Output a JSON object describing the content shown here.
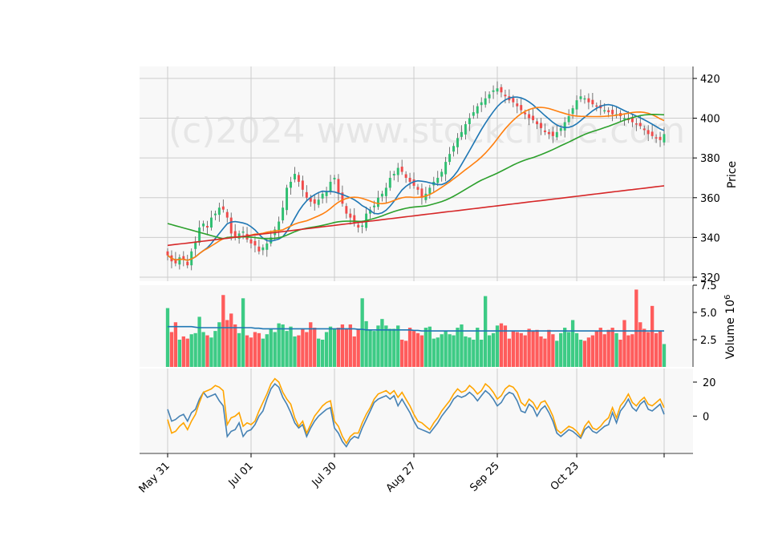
{
  "watermark": "(c)2024 www.stockcircle.com",
  "chart_data": [
    {
      "type": "candlestick",
      "panel": "price",
      "ylabel": "Price",
      "ylim": [
        318,
        426
      ],
      "yticks": [
        320,
        340,
        360,
        380,
        400,
        420
      ],
      "grid": true,
      "x_ticks": [
        {
          "label": "May 31",
          "index": 0
        },
        {
          "label": "Jul 01",
          "index": 21
        },
        {
          "label": "Jul 30",
          "index": 42
        },
        {
          "label": "Aug 27",
          "index": 62
        },
        {
          "label": "Sep 25",
          "index": 83
        },
        {
          "label": "Oct 23",
          "index": 103
        },
        {
          "label": "",
          "index": 125
        }
      ],
      "up_color": "#2fbf71",
      "down_color": "#f04a4a",
      "ma_colors": {
        "ma10": "#1f77b4",
        "ma20": "#ff7f0e",
        "ma50": "#2ca02c",
        "ma200": "#d62728"
      },
      "candles_close": [
        331,
        328,
        327,
        330,
        329,
        326,
        333,
        338,
        345,
        347,
        345,
        350,
        352,
        355,
        354,
        350,
        342,
        340,
        342,
        343,
        339,
        337,
        336,
        333,
        335,
        337,
        340,
        344,
        348,
        355,
        365,
        368,
        372,
        368,
        364,
        360,
        358,
        357,
        359,
        362,
        363,
        368,
        370,
        362,
        357,
        352,
        350,
        347,
        345,
        346,
        352,
        354,
        356,
        360,
        362,
        365,
        370,
        372,
        375,
        373,
        370,
        368,
        366,
        364,
        360,
        362,
        365,
        368,
        370,
        373,
        378,
        382,
        386,
        390,
        393,
        397,
        400,
        403,
        406,
        408,
        410,
        412,
        414,
        415,
        413,
        411,
        409,
        408,
        406,
        404,
        402,
        400,
        399,
        397,
        395,
        393,
        392,
        391,
        393,
        395,
        398,
        401,
        405,
        409,
        411,
        410,
        408,
        407,
        406,
        405,
        404,
        403,
        402,
        402,
        401,
        400,
        399,
        398,
        397,
        396,
        394,
        392,
        391,
        390,
        389,
        392
      ]
    },
    {
      "type": "bar",
      "panel": "volume",
      "ylabel": "Volume  10^6",
      "ylim": [
        0,
        7.5
      ],
      "yticks": [
        2.5,
        5.0,
        7.5
      ],
      "ytick_labels": [
        "2.5",
        "5.0",
        "7.5"
      ],
      "values": [
        5.4,
        3.2,
        4.1,
        2.5,
        2.8,
        2.6,
        3.0,
        3.1,
        4.6,
        3.2,
        2.9,
        2.7,
        3.3,
        4.1,
        6.6,
        4.3,
        4.9,
        3.9,
        3.1,
        6.3,
        2.9,
        2.7,
        3.2,
        3.1,
        2.6,
        3.0,
        3.5,
        3.2,
        4.0,
        3.9,
        3.3,
        3.7,
        2.8,
        2.9,
        3.5,
        3.2,
        4.1,
        3.6,
        2.6,
        2.5,
        3.2,
        3.7,
        3.5,
        3.6,
        3.9,
        3.5,
        3.9,
        2.8,
        3.5,
        6.3,
        4.2,
        3.4,
        3.3,
        3.8,
        4.4,
        3.8,
        3.5,
        3.5,
        3.8,
        2.5,
        2.4,
        3.6,
        3.3,
        3.1,
        2.9,
        3.6,
        3.7,
        2.6,
        2.7,
        3.0,
        3.3,
        3.0,
        2.9,
        3.6,
        3.9,
        2.8,
        2.7,
        2.5,
        3.6,
        2.5,
        6.5,
        2.9,
        3.1,
        3.8,
        4.0,
        3.8,
        2.6,
        3.3,
        3.2,
        3.1,
        2.9,
        3.5,
        3.3,
        3.4,
        2.8,
        2.6,
        3.4,
        3.0,
        2.4,
        3.1,
        3.6,
        3.2,
        4.3,
        3.1,
        2.5,
        2.4,
        2.7,
        2.9,
        3.3,
        3.6,
        3.0,
        3.4,
        3.6,
        3.1,
        2.5,
        4.3,
        2.9,
        3.0,
        7.1,
        4.1,
        3.5,
        3.2,
        5.6,
        3.1,
        3.3,
        2.1
      ],
      "avg_line": [
        3.7,
        3.7,
        3.7,
        3.7,
        3.7,
        3.7,
        3.7,
        3.65,
        3.6,
        3.6,
        3.6,
        3.6,
        3.6,
        3.6,
        3.6,
        3.6,
        3.6,
        3.6,
        3.6,
        3.6,
        3.6,
        3.6,
        3.55,
        3.55,
        3.5,
        3.5,
        3.5,
        3.5,
        3.5,
        3.5,
        3.5,
        3.5,
        3.5,
        3.5,
        3.5,
        3.5,
        3.5,
        3.5,
        3.5,
        3.5,
        3.5,
        3.5,
        3.5,
        3.5,
        3.5,
        3.5,
        3.5,
        3.5,
        3.45,
        3.45,
        3.4,
        3.4,
        3.4,
        3.4,
        3.4,
        3.4,
        3.4,
        3.4,
        3.4,
        3.4,
        3.4,
        3.4,
        3.35,
        3.35,
        3.3,
        3.3,
        3.3,
        3.3,
        3.3,
        3.3,
        3.3,
        3.3,
        3.3,
        3.3,
        3.3,
        3.3,
        3.3,
        3.3,
        3.3,
        3.3,
        3.3,
        3.3,
        3.3,
        3.3,
        3.3,
        3.3,
        3.3,
        3.3,
        3.3,
        3.3,
        3.3,
        3.3,
        3.3,
        3.3,
        3.3,
        3.3,
        3.3,
        3.3,
        3.3,
        3.3,
        3.3,
        3.3,
        3.3,
        3.3,
        3.3,
        3.3,
        3.3,
        3.3,
        3.3,
        3.3,
        3.3,
        3.3,
        3.3,
        3.3,
        3.3,
        3.3,
        3.3,
        3.3,
        3.3,
        3.3,
        3.3,
        3.3,
        3.3,
        3.3,
        3.3,
        3.3
      ]
    },
    {
      "type": "line",
      "panel": "oscillator",
      "ylim": [
        -22,
        28
      ],
      "yticks": [
        0,
        20
      ],
      "ytick_labels": [
        "0",
        "20"
      ],
      "series": [
        {
          "color": "#4682b4",
          "values": [
            4,
            -3,
            -2,
            0,
            1,
            -3,
            2,
            4,
            10,
            14,
            11,
            12,
            13,
            9,
            6,
            -12,
            -9,
            -8,
            -4,
            -12,
            -9,
            -8,
            -5,
            0,
            3,
            10,
            16,
            19,
            17,
            11,
            7,
            2,
            -4,
            -7,
            -5,
            -12,
            -7,
            -3,
            0,
            2,
            4,
            5,
            -7,
            -10,
            -15,
            -18,
            -14,
            -12,
            -13,
            -7,
            -2,
            3,
            8,
            10,
            11,
            12,
            10,
            12,
            6,
            10,
            6,
            2,
            -3,
            -7,
            -8,
            -9,
            -10,
            -7,
            -4,
            0,
            3,
            6,
            10,
            12,
            11,
            12,
            14,
            12,
            9,
            12,
            15,
            13,
            10,
            6,
            8,
            12,
            14,
            13,
            9,
            3,
            2,
            7,
            5,
            0,
            4,
            6,
            2,
            -3,
            -10,
            -12,
            -10,
            -8,
            -9,
            -11,
            -13,
            -8,
            -6,
            -9,
            -10,
            -8,
            -6,
            -5,
            2,
            -4,
            3,
            6,
            10,
            5,
            3,
            7,
            9,
            4,
            3,
            5,
            7,
            1
          ]
        },
        {
          "color": "#ffa500",
          "values": [
            -2,
            -10,
            -9,
            -6,
            -4,
            -8,
            -3,
            1,
            8,
            14,
            15,
            16,
            18,
            17,
            15,
            -5,
            -1,
            0,
            2,
            -6,
            -4,
            -5,
            -3,
            3,
            8,
            13,
            19,
            22,
            20,
            14,
            10,
            7,
            -1,
            -6,
            -3,
            -10,
            -5,
            0,
            3,
            6,
            8,
            9,
            -3,
            -6,
            -12,
            -16,
            -12,
            -10,
            -10,
            -4,
            1,
            5,
            10,
            13,
            14,
            15,
            13,
            15,
            11,
            14,
            10,
            6,
            1,
            -3,
            -4,
            -6,
            -8,
            -4,
            -1,
            3,
            6,
            9,
            13,
            16,
            14,
            15,
            18,
            16,
            13,
            15,
            19,
            17,
            14,
            10,
            12,
            16,
            18,
            17,
            14,
            8,
            6,
            10,
            8,
            4,
            8,
            9,
            5,
            0,
            -8,
            -10,
            -8,
            -6,
            -7,
            -9,
            -12,
            -6,
            -3,
            -7,
            -8,
            -6,
            -3,
            -1,
            5,
            -1,
            6,
            9,
            13,
            8,
            6,
            9,
            11,
            7,
            6,
            8,
            10,
            5
          ]
        }
      ]
    }
  ]
}
